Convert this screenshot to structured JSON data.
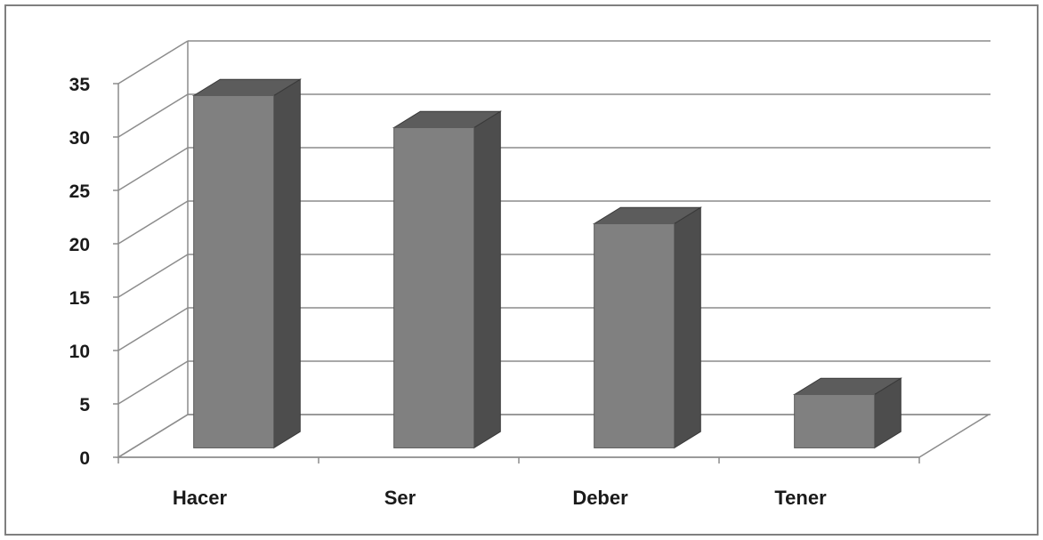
{
  "chart_data": {
    "type": "bar",
    "style": "3d-column",
    "categories": [
      "Hacer",
      "Ser",
      "Deber",
      "Tener"
    ],
    "values": [
      33,
      30,
      21,
      5
    ],
    "ylim": [
      0,
      35
    ],
    "yticks": [
      0,
      5,
      10,
      15,
      20,
      25,
      30,
      35
    ],
    "ytick_labels": [
      "0",
      "5",
      "10",
      "15",
      "20",
      "25",
      "30",
      "35"
    ],
    "grid": true,
    "legend": "none",
    "title": "",
    "xlabel": "",
    "ylabel": ""
  },
  "colors": {
    "bar_front": "#808080",
    "bar_side": "#4d4d4d",
    "bar_top": "#5c5c5c",
    "grid": "#8c8c8c",
    "frame": "#7f7f7f",
    "text": "#1a1a1a"
  }
}
